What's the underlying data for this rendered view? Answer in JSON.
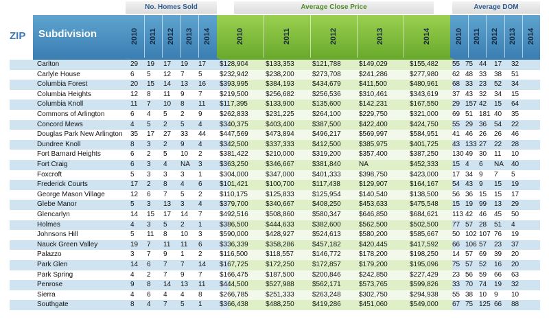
{
  "headers": {
    "zip": "ZIP",
    "subdivision": "Subdivision",
    "homes_group": "No. Homes Sold",
    "price_group": "Average Close Price",
    "dom_group": "Average DOM",
    "years": [
      "2010",
      "2011",
      "2012",
      "2013",
      "2014"
    ]
  },
  "rows": [
    {
      "name": "Carlton",
      "homes": [
        "29",
        "19",
        "17",
        "19",
        "17"
      ],
      "price": [
        "$128,904",
        "$133,353",
        "$121,788",
        "$149,029",
        "$155,482"
      ],
      "dom": [
        "55",
        "75",
        "44",
        "17",
        "32"
      ]
    },
    {
      "name": "Carlyle House",
      "homes": [
        "6",
        "5",
        "12",
        "7",
        "5"
      ],
      "price": [
        "$232,942",
        "$238,200",
        "$273,708",
        "$241,286",
        "$277,980"
      ],
      "dom": [
        "62",
        "48",
        "33",
        "38",
        "51"
      ]
    },
    {
      "name": "Columbia Forest",
      "homes": [
        "20",
        "15",
        "14",
        "13",
        "16"
      ],
      "price": [
        "$393,995",
        "$384,193",
        "$434,679",
        "$411,500",
        "$480,961"
      ],
      "dom": [
        "68",
        "33",
        "23",
        "52",
        "34"
      ]
    },
    {
      "name": "Columbia Heights",
      "homes": [
        "12",
        "8",
        "11",
        "9",
        "7"
      ],
      "price": [
        "$219,500",
        "$256,682",
        "$256,536",
        "$310,461",
        "$343,619"
      ],
      "dom": [
        "37",
        "43",
        "32",
        "34",
        "15"
      ]
    },
    {
      "name": "Columbia Knoll",
      "homes": [
        "11",
        "7",
        "10",
        "8",
        "11"
      ],
      "price": [
        "$117,395",
        "$133,900",
        "$135,600",
        "$142,231",
        "$167,550"
      ],
      "dom": [
        "29",
        "157",
        "42",
        "15",
        "64"
      ]
    },
    {
      "name": "Commons of Arlington",
      "homes": [
        "6",
        "4",
        "5",
        "2",
        "9"
      ],
      "price": [
        "$262,833",
        "$231,225",
        "$264,100",
        "$229,750",
        "$321,000"
      ],
      "dom": [
        "69",
        "51",
        "181",
        "40",
        "35"
      ]
    },
    {
      "name": "Concord Mews",
      "homes": [
        "4",
        "5",
        "2",
        "5",
        "4"
      ],
      "price": [
        "$340,375",
        "$403,400",
        "$387,500",
        "$422,400",
        "$424,750"
      ],
      "dom": [
        "55",
        "29",
        "36",
        "54",
        "22"
      ]
    },
    {
      "name": "Douglas Park New Arlington",
      "homes": [
        "35",
        "17",
        "27",
        "33",
        "44"
      ],
      "price": [
        "$447,569",
        "$473,894",
        "$496,217",
        "$569,997",
        "$584,951"
      ],
      "dom": [
        "41",
        "46",
        "26",
        "26",
        "46"
      ]
    },
    {
      "name": "Dundree Knoll",
      "homes": [
        "8",
        "3",
        "2",
        "9",
        "4"
      ],
      "price": [
        "$342,500",
        "$337,333",
        "$412,500",
        "$385,975",
        "$401,725"
      ],
      "dom": [
        "43",
        "133",
        "27",
        "22",
        "28"
      ]
    },
    {
      "name": "Fort Barnard Heights",
      "homes": [
        "6",
        "2",
        "5",
        "10",
        "2"
      ],
      "price": [
        "$381,422",
        "$210,000",
        "$319,200",
        "$357,400",
        "$387,250"
      ],
      "dom": [
        "130",
        "49",
        "30",
        "11",
        "10"
      ]
    },
    {
      "name": "Fort Craig",
      "homes": [
        "6",
        "3",
        "4",
        "NA",
        "3"
      ],
      "price": [
        "$363,250",
        "$346,667",
        "$381,840",
        "NA",
        "$452,333"
      ],
      "dom": [
        "15",
        "4",
        "6",
        "NA",
        "40"
      ]
    },
    {
      "name": "Foxcroft",
      "homes": [
        "5",
        "3",
        "3",
        "3",
        "1"
      ],
      "price": [
        "$304,000",
        "$347,000",
        "$401,333",
        "$398,750",
        "$423,000"
      ],
      "dom": [
        "17",
        "34",
        "9",
        "7",
        "5"
      ]
    },
    {
      "name": "Frederick Courts",
      "homes": [
        "17",
        "2",
        "8",
        "4",
        "6"
      ],
      "price": [
        "$101,421",
        "$100,700",
        "$117,438",
        "$129,907",
        "$164,167"
      ],
      "dom": [
        "54",
        "43",
        "9",
        "15",
        "19"
      ]
    },
    {
      "name": "George Mason Village",
      "homes": [
        "12",
        "6",
        "7",
        "5",
        "2"
      ],
      "price": [
        "$110,175",
        "$125,833",
        "$125,954",
        "$140,540",
        "$138,500"
      ],
      "dom": [
        "56",
        "36",
        "15",
        "15",
        "17"
      ]
    },
    {
      "name": "Glebe Manor",
      "homes": [
        "5",
        "3",
        "13",
        "3",
        "4"
      ],
      "price": [
        "$379,700",
        "$340,667",
        "$408,250",
        "$453,633",
        "$475,548"
      ],
      "dom": [
        "15",
        "19",
        "99",
        "13",
        "29"
      ]
    },
    {
      "name": "Glencarlyn",
      "homes": [
        "14",
        "15",
        "17",
        "14",
        "7"
      ],
      "price": [
        "$492,516",
        "$508,860",
        "$580,347",
        "$646,850",
        "$684,621"
      ],
      "dom": [
        "113",
        "42",
        "46",
        "45",
        "50"
      ]
    },
    {
      "name": "Holmes",
      "homes": [
        "4",
        "3",
        "5",
        "2",
        "1"
      ],
      "price": [
        "$386,500",
        "$444,633",
        "$382,600",
        "$562,500",
        "$502,500"
      ],
      "dom": [
        "77",
        "57",
        "28",
        "51",
        "4"
      ]
    },
    {
      "name": "Johnsons Hill",
      "homes": [
        "5",
        "11",
        "8",
        "10",
        "3"
      ],
      "price": [
        "$590,000",
        "$428,927",
        "$524,613",
        "$580,200",
        "$585,667"
      ],
      "dom": [
        "50",
        "102",
        "107",
        "76",
        "19"
      ]
    },
    {
      "name": "Nauck Green Valley",
      "homes": [
        "19",
        "7",
        "11",
        "11",
        "6"
      ],
      "price": [
        "$336,339",
        "$358,286",
        "$457,182",
        "$420,445",
        "$417,592"
      ],
      "dom": [
        "66",
        "106",
        "57",
        "23",
        "37"
      ]
    },
    {
      "name": "Palazzo",
      "homes": [
        "3",
        "7",
        "9",
        "1",
        "2"
      ],
      "price": [
        "$116,500",
        "$118,557",
        "$146,772",
        "$178,200",
        "$198,250"
      ],
      "dom": [
        "14",
        "57",
        "69",
        "39",
        "20"
      ]
    },
    {
      "name": "Park Glen",
      "homes": [
        "14",
        "6",
        "7",
        "7",
        "14"
      ],
      "price": [
        "$167,725",
        "$172,250",
        "$172,857",
        "$179,200",
        "$195,096"
      ],
      "dom": [
        "75",
        "57",
        "52",
        "16",
        "20"
      ]
    },
    {
      "name": "Park Spring",
      "homes": [
        "4",
        "2",
        "7",
        "9",
        "7"
      ],
      "price": [
        "$166,475",
        "$187,500",
        "$200,846",
        "$242,850",
        "$227,429"
      ],
      "dom": [
        "23",
        "56",
        "59",
        "66",
        "63"
      ]
    },
    {
      "name": "Penrose",
      "homes": [
        "9",
        "8",
        "14",
        "13",
        "11"
      ],
      "price": [
        "$444,500",
        "$527,988",
        "$562,171",
        "$573,765",
        "$599,826"
      ],
      "dom": [
        "33",
        "70",
        "74",
        "19",
        "32"
      ]
    },
    {
      "name": "Sierra",
      "homes": [
        "4",
        "6",
        "4",
        "4",
        "8"
      ],
      "price": [
        "$266,785",
        "$251,333",
        "$263,248",
        "$302,750",
        "$294,938"
      ],
      "dom": [
        "55",
        "38",
        "10",
        "9",
        "10"
      ]
    },
    {
      "name": "Southgate",
      "homes": [
        "8",
        "4",
        "7",
        "5",
        "1"
      ],
      "price": [
        "$366,438",
        "$488,250",
        "$419,286",
        "$451,060",
        "$549,000"
      ],
      "dom": [
        "67",
        "75",
        "125",
        "66",
        "88"
      ]
    }
  ]
}
